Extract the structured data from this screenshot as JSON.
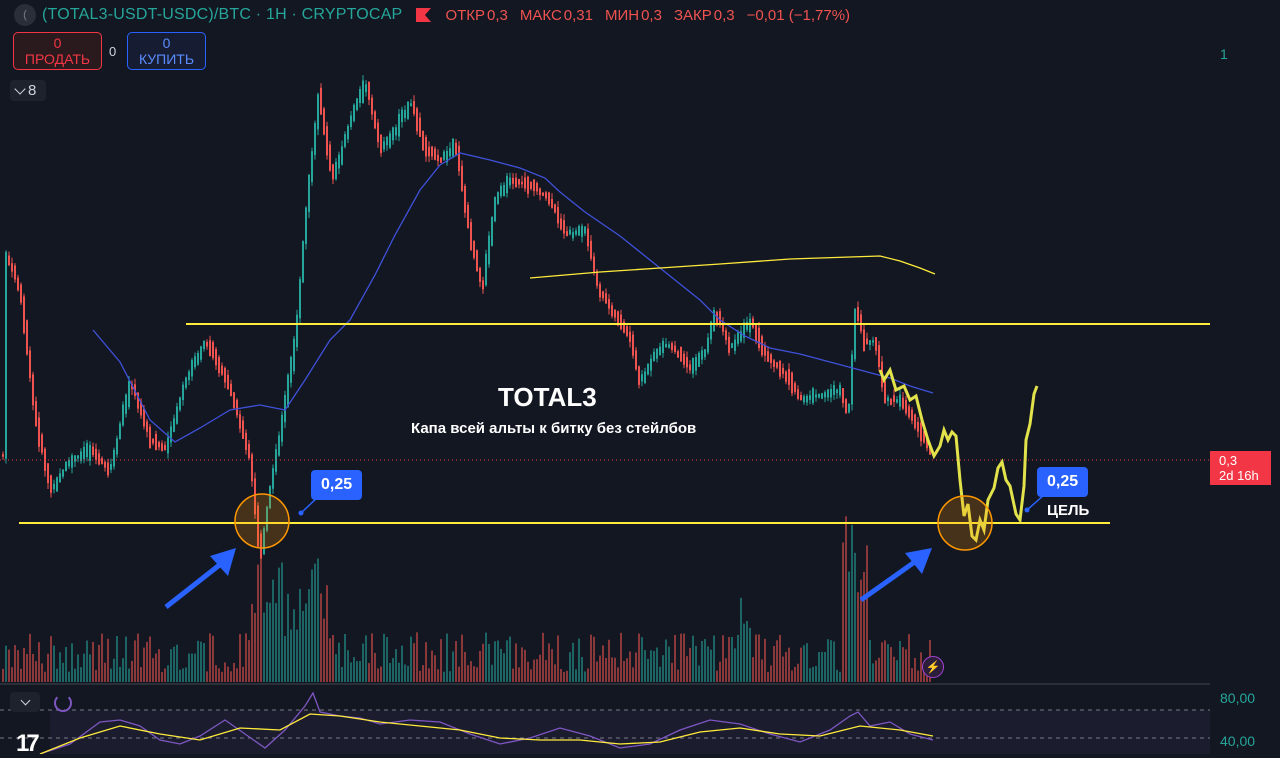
{
  "header": {
    "symbol_icon": "(",
    "symbol_title": "(TOTAL3-USDT-USDC)/BTC · 1H · CRYPTOCAP",
    "flag_icon": "red-flag-icon",
    "ohlc": [
      {
        "label": "ОТКР",
        "value": "0,3"
      },
      {
        "label": "МАКС",
        "value": "0,31"
      },
      {
        "label": "МИН",
        "value": "0,3"
      },
      {
        "label": "ЗАКР",
        "value": "0,3"
      }
    ],
    "change": "−0,01 (−1,77%)"
  },
  "trade": {
    "sell_value": "0",
    "sell_label": "ПРОДАТЬ",
    "spread": "0",
    "buy_value": "0",
    "buy_label": "КУПИТЬ"
  },
  "collapse": {
    "count": "8"
  },
  "price_axis": {
    "top_label": "1",
    "current_price": "0,3",
    "countdown": "2d 16h"
  },
  "annotations": {
    "title": "TOTAL3",
    "subtitle": "Капа всей альты к битку без стейлбов",
    "callout_left": "0,25",
    "callout_right": "0,25",
    "target_label": "ЦЕЛЬ"
  },
  "rsi": {
    "upper_level": "80,00",
    "lower_level": "40,00"
  },
  "colors": {
    "background": "#131722",
    "up": "#26a69a",
    "down": "#ef5350",
    "level_line": "#ffeb3b",
    "ma_blue": "#3f51d9",
    "circle": "#ff9800",
    "arrow": "#2962ff"
  },
  "branding": {
    "logo": "17"
  }
}
